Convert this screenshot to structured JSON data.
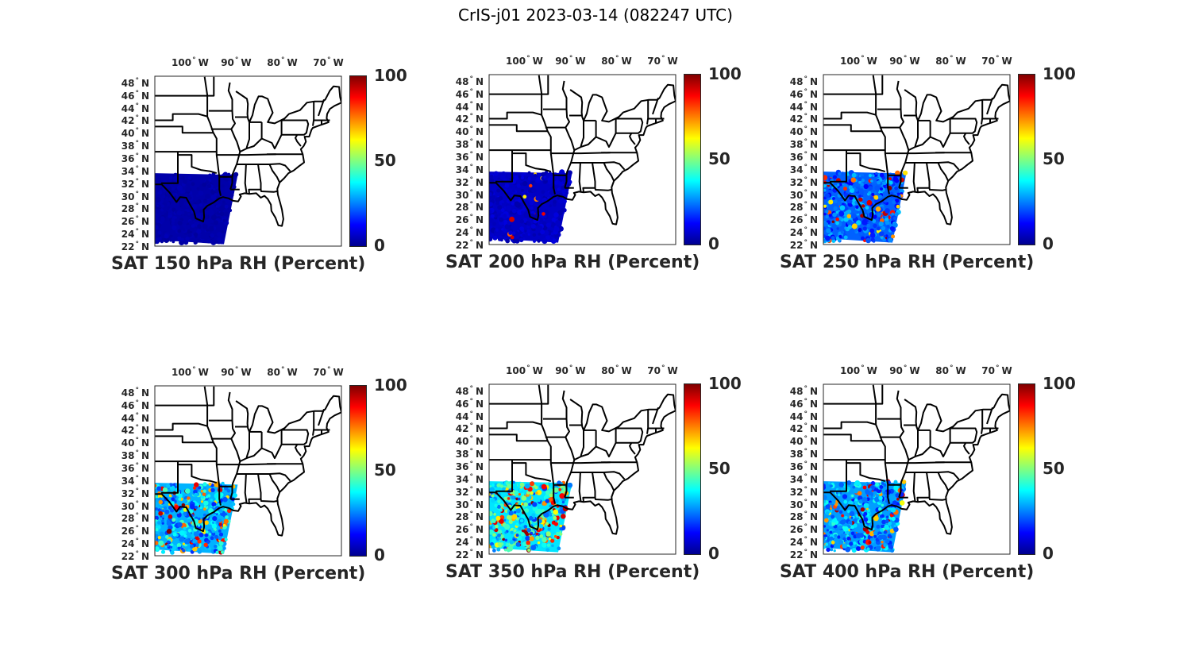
{
  "figure_title": "CrIS-j01 2023-03-14 (082247 UTC)",
  "lon_ticks": [
    {
      "deg": "100",
      "dir": "W"
    },
    {
      "deg": "90",
      "dir": "W"
    },
    {
      "deg": "80",
      "dir": "W"
    },
    {
      "deg": "70",
      "dir": "W"
    }
  ],
  "lat_ticks": [
    {
      "deg": "48",
      "dir": "N"
    },
    {
      "deg": "46",
      "dir": "N"
    },
    {
      "deg": "44",
      "dir": "N"
    },
    {
      "deg": "42",
      "dir": "N"
    },
    {
      "deg": "40",
      "dir": "N"
    },
    {
      "deg": "38",
      "dir": "N"
    },
    {
      "deg": "36",
      "dir": "N"
    },
    {
      "deg": "34",
      "dir": "N"
    },
    {
      "deg": "32",
      "dir": "N"
    },
    {
      "deg": "30",
      "dir": "N"
    },
    {
      "deg": "28",
      "dir": "N"
    },
    {
      "deg": "26",
      "dir": "N"
    },
    {
      "deg": "24",
      "dir": "N"
    },
    {
      "deg": "22",
      "dir": "N"
    }
  ],
  "colorbar": {
    "min": 0,
    "max": 100,
    "tick_labels": [
      "100",
      "50",
      "0"
    ],
    "colormap": [
      "#00008f",
      "#0000ff",
      "#0080ff",
      "#00ffff",
      "#80ff80",
      "#ffff00",
      "#ff8000",
      "#ff0000",
      "#800000"
    ]
  },
  "panels": [
    {
      "title": "SAT 150 hPa RH (Percent)",
      "level_hpa": 150,
      "typical_rh": 3,
      "moist_fraction": 0.0
    },
    {
      "title": "SAT 200 hPa RH (Percent)",
      "level_hpa": 200,
      "typical_rh": 6,
      "moist_fraction": 0.02
    },
    {
      "title": "SAT 250 hPa RH (Percent)",
      "level_hpa": 250,
      "typical_rh": 22,
      "moist_fraction": 0.12
    },
    {
      "title": "SAT 300 hPa RH (Percent)",
      "level_hpa": 300,
      "typical_rh": 30,
      "moist_fraction": 0.22
    },
    {
      "title": "SAT 350 hPa RH (Percent)",
      "level_hpa": 350,
      "typical_rh": 35,
      "moist_fraction": 0.25
    },
    {
      "title": "SAT 400 hPa RH (Percent)",
      "level_hpa": 400,
      "typical_rh": 28,
      "moist_fraction": 0.15
    }
  ]
}
